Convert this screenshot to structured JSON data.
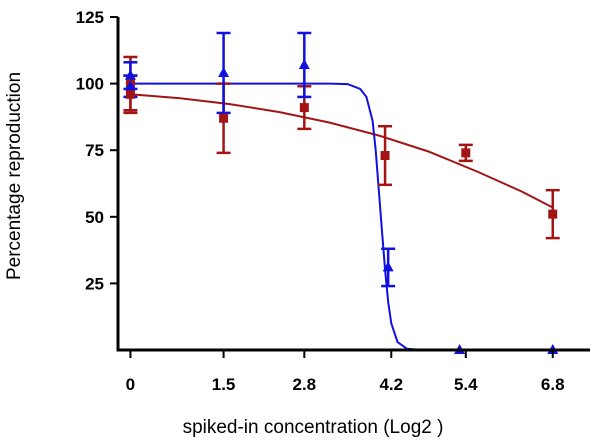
{
  "chart_data": {
    "type": "scatter",
    "xlabel": "spiked-in concentration (Log2 )",
    "ylabel": "Percentage  reproduction",
    "xlim": [
      -0.2,
      7.4
    ],
    "ylim": [
      0,
      125
    ],
    "x_ticks": [
      0,
      1.5,
      2.8,
      4.2,
      5.4,
      6.8
    ],
    "x_tick_labels": [
      "0",
      "1.5",
      "2.8",
      "4.2",
      "5.4",
      "6.8"
    ],
    "y_ticks": [
      25,
      50,
      75,
      100,
      125
    ],
    "y_tick_labels": [
      "25",
      "50",
      "75",
      "100",
      "125"
    ],
    "grid": false,
    "legend": "none",
    "series": [
      {
        "marker": "square",
        "color": "#a31515",
        "points": [
          {
            "x": 0,
            "y": 100,
            "err": 10
          },
          {
            "x": 0,
            "y": 96,
            "err": 7
          },
          {
            "x": 1.5,
            "y": 87,
            "err": 13
          },
          {
            "x": 2.8,
            "y": 91,
            "err": 8
          },
          {
            "x": 4.1,
            "y": 73,
            "err": 11
          },
          {
            "x": 5.4,
            "y": 74,
            "err": 3
          },
          {
            "x": 6.8,
            "y": 51,
            "err": 9
          }
        ],
        "fit": [
          {
            "x": 0,
            "y": 96
          },
          {
            "x": 0.8,
            "y": 94.5
          },
          {
            "x": 1.6,
            "y": 92.3
          },
          {
            "x": 2.4,
            "y": 89.3
          },
          {
            "x": 3.2,
            "y": 85.4
          },
          {
            "x": 4.0,
            "y": 80.5
          },
          {
            "x": 4.8,
            "y": 74.5
          },
          {
            "x": 5.6,
            "y": 66.8
          },
          {
            "x": 6.3,
            "y": 59.5
          },
          {
            "x": 6.8,
            "y": 53.5
          }
        ]
      },
      {
        "marker": "triangle",
        "color": "#1010e0",
        "points": [
          {
            "x": 0,
            "y": 103,
            "err": 5
          },
          {
            "x": 0,
            "y": 99,
            "err": 4
          },
          {
            "x": 1.5,
            "y": 104,
            "err": 15
          },
          {
            "x": 2.8,
            "y": 107,
            "err": 12
          },
          {
            "x": 4.15,
            "y": 31,
            "err": 7
          },
          {
            "x": 5.3,
            "y": 0,
            "err": 0
          },
          {
            "x": 6.8,
            "y": 0,
            "err": 0
          }
        ],
        "fit": [
          {
            "x": 0,
            "y": 100
          },
          {
            "x": 3.2,
            "y": 100
          },
          {
            "x": 3.5,
            "y": 99.8
          },
          {
            "x": 3.7,
            "y": 98
          },
          {
            "x": 3.8,
            "y": 95
          },
          {
            "x": 3.9,
            "y": 86
          },
          {
            "x": 3.95,
            "y": 75
          },
          {
            "x": 4.0,
            "y": 60
          },
          {
            "x": 4.05,
            "y": 45
          },
          {
            "x": 4.1,
            "y": 30
          },
          {
            "x": 4.15,
            "y": 18
          },
          {
            "x": 4.2,
            "y": 10
          },
          {
            "x": 4.3,
            "y": 3
          },
          {
            "x": 4.45,
            "y": 0.5
          },
          {
            "x": 4.7,
            "y": 0
          },
          {
            "x": 6.8,
            "y": 0
          }
        ]
      }
    ]
  }
}
